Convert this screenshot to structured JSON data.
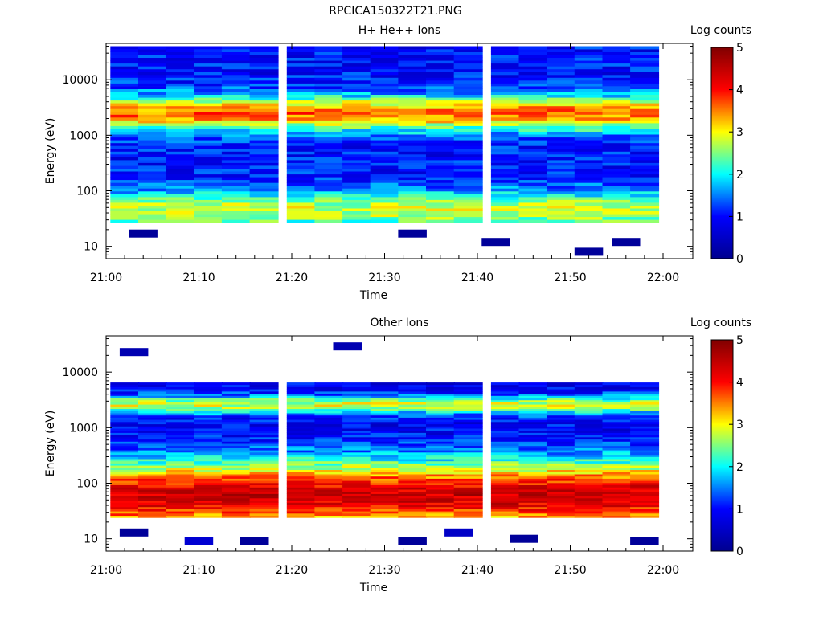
{
  "page_title": "RPCICA150322T21.PNG",
  "colorbar_stops": [
    "#00008f",
    "#0000ff",
    "#00ffff",
    "#ffff00",
    "#ff0000",
    "#800000"
  ],
  "chart_data": [
    {
      "type": "heatmap",
      "title": "H+ He++ Ions",
      "xlabel": "Time",
      "ylabel": "Energy (eV)",
      "y_scale": "log",
      "ylim": [
        6,
        45000
      ],
      "x_ticks": [
        "21:00",
        "21:10",
        "21:20",
        "21:30",
        "21:40",
        "21:50",
        "22:00"
      ],
      "y_ticks": [
        10,
        100,
        1000,
        10000
      ],
      "y_tick_labels": [
        "10",
        "100",
        "1000",
        "10000"
      ],
      "colorbar": {
        "label": "Log counts",
        "ticks": [
          "0",
          "1",
          "2",
          "3",
          "4",
          "5"
        ],
        "range": [
          0,
          5
        ]
      },
      "time_bins": [
        "21:02",
        "21:05",
        "21:08",
        "21:11",
        "21:14",
        "21:17",
        "21:21",
        "21:24",
        "21:27",
        "21:30",
        "21:33",
        "21:36",
        "21:39",
        "21:43",
        "21:46",
        "21:49",
        "21:52",
        "21:55",
        "21:58"
      ],
      "profile": {
        "e_min": 27,
        "e_max": 40000,
        "peaks": [
          {
            "e": 2500,
            "w": 0.22,
            "amp": 2.6
          },
          {
            "e": 45,
            "w": 0.25,
            "amp": 1.8
          }
        ],
        "base": 1.0
      },
      "sparse_points": [
        {
          "t": "21:04",
          "e": 17,
          "v": 0.1
        },
        {
          "t": "21:33",
          "e": 17,
          "v": 0.1
        },
        {
          "t": "21:42",
          "e": 12,
          "v": 0.1
        },
        {
          "t": "21:52",
          "e": 8,
          "v": 0.1
        },
        {
          "t": "21:56",
          "e": 12,
          "v": 0.1
        }
      ]
    },
    {
      "type": "heatmap",
      "title": "Other Ions",
      "xlabel": "Time",
      "ylabel": "Energy (eV)",
      "y_scale": "log",
      "ylim": [
        6,
        45000
      ],
      "x_ticks": [
        "21:00",
        "21:10",
        "21:20",
        "21:30",
        "21:40",
        "21:50",
        "22:00"
      ],
      "y_ticks": [
        10,
        100,
        1000,
        10000
      ],
      "y_tick_labels": [
        "10",
        "100",
        "1000",
        "10000"
      ],
      "colorbar": {
        "label": "Log counts",
        "ticks": [
          "0",
          "1",
          "2",
          "3",
          "4",
          "5"
        ],
        "range": [
          0,
          5
        ]
      },
      "time_bins": [
        "21:02",
        "21:05",
        "21:08",
        "21:11",
        "21:14",
        "21:17",
        "21:21",
        "21:24",
        "21:27",
        "21:30",
        "21:33",
        "21:36",
        "21:39",
        "21:43",
        "21:46",
        "21:49",
        "21:52",
        "21:55",
        "21:58"
      ],
      "profile": {
        "e_min": 24,
        "e_max": 6500,
        "peaks": [
          {
            "e": 60,
            "w": 0.45,
            "amp": 3.6
          },
          {
            "e": 2600,
            "w": 0.12,
            "amp": 2.0
          }
        ],
        "base": 0.8
      },
      "sparse_points": [
        {
          "t": "21:03",
          "e": 23000,
          "v": 0.3
        },
        {
          "t": "21:26",
          "e": 29000,
          "v": 0.3
        },
        {
          "t": "21:03",
          "e": 13,
          "v": 0.1
        },
        {
          "t": "21:10",
          "e": 9,
          "v": 0.6
        },
        {
          "t": "21:16",
          "e": 9,
          "v": 0.1
        },
        {
          "t": "21:33",
          "e": 9,
          "v": 0.1
        },
        {
          "t": "21:38",
          "e": 13,
          "v": 0.5
        },
        {
          "t": "21:45",
          "e": 10,
          "v": 0.1
        },
        {
          "t": "21:58",
          "e": 9,
          "v": 0.1
        }
      ]
    }
  ]
}
